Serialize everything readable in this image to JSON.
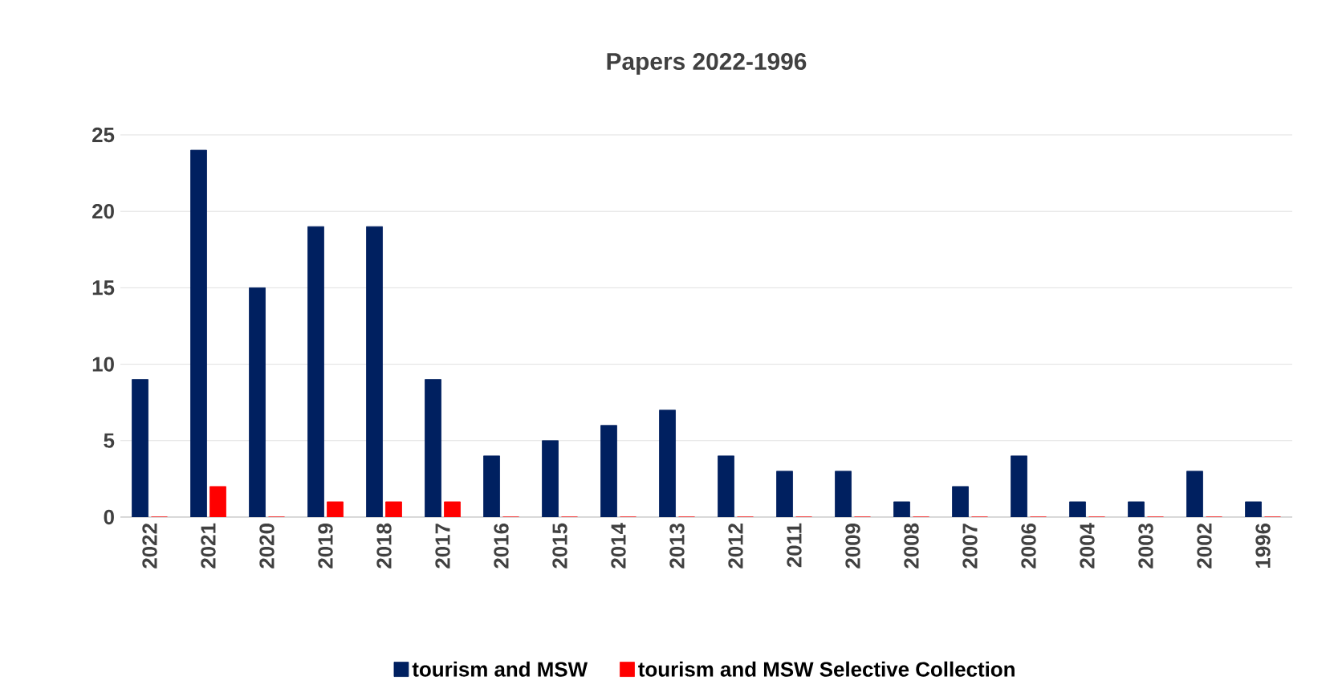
{
  "chart_data": {
    "type": "bar",
    "title": "Papers 2022-1996",
    "categories": [
      "2022",
      "2021",
      "2020",
      "2019",
      "2018",
      "2017",
      "2016",
      "2015",
      "2014",
      "2013",
      "2012",
      "2011",
      "2009",
      "2008",
      "2007",
      "2006",
      "2004",
      "2003",
      "2002",
      "1996"
    ],
    "series": [
      {
        "name": "tourism and MSW",
        "color": "#002060",
        "values": [
          9,
          24,
          15,
          19,
          19,
          9,
          4,
          5,
          6,
          7,
          4,
          3,
          3,
          1,
          2,
          4,
          1,
          1,
          3,
          1
        ]
      },
      {
        "name": "tourism and MSW Selective Collection",
        "color": "#ff0000",
        "values": [
          0,
          2,
          0,
          1,
          1,
          1,
          0,
          0,
          0,
          0,
          0,
          0,
          0,
          0,
          0,
          0,
          0,
          0,
          0,
          0
        ]
      }
    ],
    "ylim": [
      0,
      25
    ],
    "yticks": [
      0,
      5,
      10,
      15,
      20,
      25
    ],
    "grid": "y",
    "legend": "bottom"
  }
}
